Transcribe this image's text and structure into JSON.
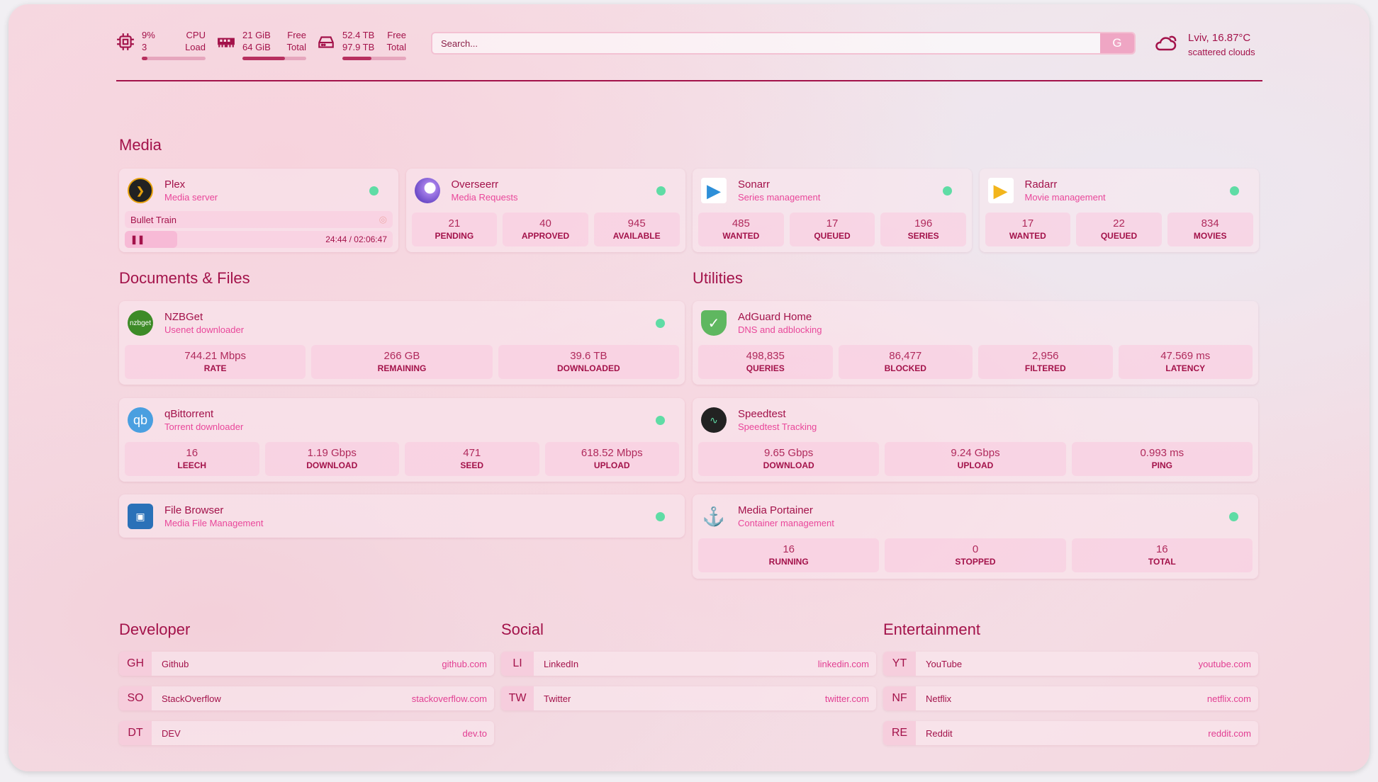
{
  "header": {
    "cpu": {
      "value": "9%",
      "cores": "3",
      "label1": "CPU",
      "label2": "Load",
      "percent": 9
    },
    "memory": {
      "free": "21 GiB",
      "total": "64 GiB",
      "label1": "Free",
      "label2": "Total",
      "percent": 67
    },
    "disk": {
      "free": "52.4 TB",
      "total": "97.9 TB",
      "label1": "Free",
      "label2": "Total",
      "percent": 46
    },
    "search": {
      "placeholder": "Search...",
      "button": "G"
    },
    "weather": {
      "location": "Lviv, 16.87°C",
      "condition": "scattered clouds"
    }
  },
  "media": {
    "title": "Media",
    "cards": [
      {
        "name": "Plex",
        "sub": "Media server",
        "now_playing": "Bullet Train",
        "progress_text": "24:44 / 02:06:47",
        "progress": 19.5,
        "status": "online"
      },
      {
        "name": "Overseerr",
        "sub": "Media Requests",
        "stats": [
          {
            "v": "21",
            "l": "PENDING"
          },
          {
            "v": "40",
            "l": "APPROVED"
          },
          {
            "v": "945",
            "l": "AVAILABLE"
          }
        ]
      },
      {
        "name": "Sonarr",
        "sub": "Series management",
        "stats": [
          {
            "v": "485",
            "l": "WANTED"
          },
          {
            "v": "17",
            "l": "QUEUED"
          },
          {
            "v": "196",
            "l": "SERIES"
          }
        ]
      },
      {
        "name": "Radarr",
        "sub": "Movie management",
        "stats": [
          {
            "v": "17",
            "l": "WANTED"
          },
          {
            "v": "22",
            "l": "QUEUED"
          },
          {
            "v": "834",
            "l": "MOVIES"
          }
        ]
      }
    ]
  },
  "documents": {
    "title": "Documents & Files",
    "cards": [
      {
        "name": "NZBGet",
        "sub": "Usenet downloader",
        "logo": "nzbget",
        "stats": [
          {
            "v": "744.21 Mbps",
            "l": "RATE"
          },
          {
            "v": "266 GB",
            "l": "REMAINING"
          },
          {
            "v": "39.6 TB",
            "l": "DOWNLOADED"
          }
        ]
      },
      {
        "name": "qBittorrent",
        "sub": "Torrent downloader",
        "logo": "qb",
        "stats": [
          {
            "v": "16",
            "l": "LEECH"
          },
          {
            "v": "1.19 Gbps",
            "l": "DOWNLOAD"
          },
          {
            "v": "471",
            "l": "SEED"
          },
          {
            "v": "618.52 Mbps",
            "l": "UPLOAD"
          }
        ]
      },
      {
        "name": "File Browser",
        "sub": "Media File Management"
      }
    ]
  },
  "utilities": {
    "title": "Utilities",
    "cards": [
      {
        "name": "AdGuard Home",
        "sub": "DNS and adblocking",
        "stats": [
          {
            "v": "498,835",
            "l": "QUERIES"
          },
          {
            "v": "86,477",
            "l": "BLOCKED"
          },
          {
            "v": "2,956",
            "l": "FILTERED"
          },
          {
            "v": "47.569 ms",
            "l": "LATENCY"
          }
        ]
      },
      {
        "name": "Speedtest",
        "sub": "Speedtest Tracking",
        "stats": [
          {
            "v": "9.65 Gbps",
            "l": "DOWNLOAD"
          },
          {
            "v": "9.24 Gbps",
            "l": "UPLOAD"
          },
          {
            "v": "0.993 ms",
            "l": "PING"
          }
        ]
      },
      {
        "name": "Media Portainer",
        "sub": "Container management",
        "stats": [
          {
            "v": "16",
            "l": "RUNNING"
          },
          {
            "v": "0",
            "l": "STOPPED"
          },
          {
            "v": "16",
            "l": "TOTAL"
          }
        ]
      }
    ]
  },
  "bookmarks": [
    {
      "title": "Developer",
      "items": [
        {
          "ab": "GH",
          "name": "Github",
          "url": "github.com"
        },
        {
          "ab": "SO",
          "name": "StackOverflow",
          "url": "stackoverflow.com"
        },
        {
          "ab": "DT",
          "name": "DEV",
          "url": "dev.to"
        }
      ]
    },
    {
      "title": "Social",
      "items": [
        {
          "ab": "LI",
          "name": "LinkedIn",
          "url": "linkedin.com"
        },
        {
          "ab": "TW",
          "name": "Twitter",
          "url": "twitter.com"
        }
      ]
    },
    {
      "title": "Entertainment",
      "items": [
        {
          "ab": "YT",
          "name": "YouTube",
          "url": "youtube.com"
        },
        {
          "ab": "NF",
          "name": "Netflix",
          "url": "netflix.com"
        },
        {
          "ab": "RE",
          "name": "Reddit",
          "url": "reddit.com"
        }
      ]
    }
  ],
  "colors": {
    "accent": "#a3124a",
    "subtitle": "#e9479a",
    "status_online": "#5fdca5"
  }
}
